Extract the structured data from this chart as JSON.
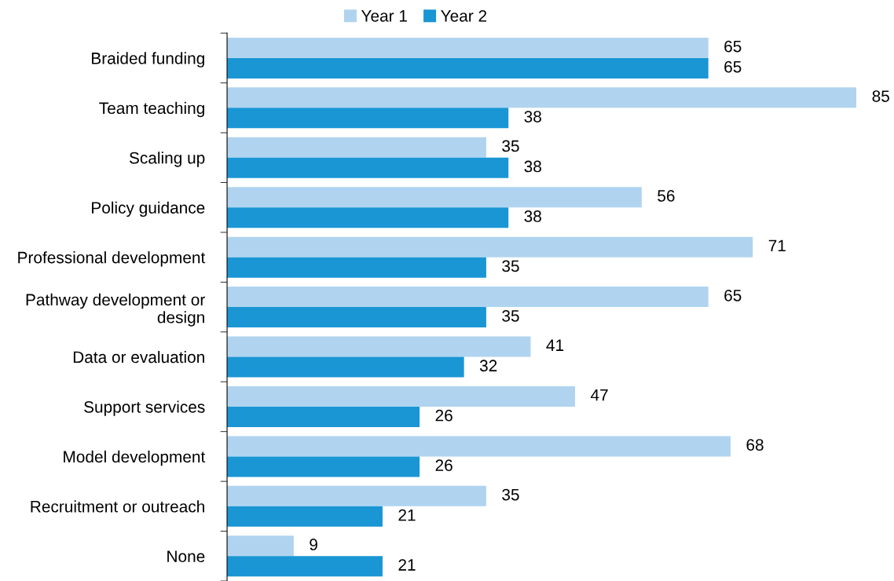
{
  "chart_data": {
    "type": "bar",
    "orientation": "horizontal",
    "categories": [
      "Braided funding",
      "Team teaching",
      "Scaling up",
      "Policy guidance",
      "Professional development",
      "Pathway development or\ndesign",
      "Data or evaluation",
      "Support services",
      "Model development",
      "Recruitment or outreach",
      "None"
    ],
    "series": [
      {
        "name": "Year 1",
        "color": "#b0d4f0",
        "values": [
          65,
          85,
          35,
          56,
          71,
          65,
          41,
          47,
          68,
          35,
          9
        ]
      },
      {
        "name": "Year 2",
        "color": "#1a96d4",
        "values": [
          65,
          38,
          38,
          38,
          35,
          35,
          32,
          26,
          26,
          21,
          21
        ]
      }
    ],
    "data_labels": true,
    "legend": "top",
    "grid": false,
    "tick_labels": "y"
  }
}
